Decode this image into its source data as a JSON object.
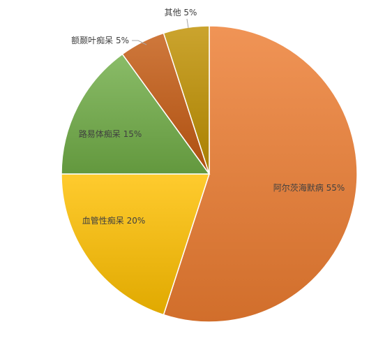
{
  "chart_data": {
    "type": "pie",
    "categories": [
      "阿尔茨海默病",
      "血管性痴呆",
      "路易体痴呆",
      "额颞叶痴呆",
      "其他"
    ],
    "values": [
      55,
      20,
      15,
      5,
      5
    ],
    "data_labels": [
      "阿尔茨海默病 55%",
      "血管性痴呆 20%",
      "路易体痴呆 15%",
      "额颞叶痴呆 5%",
      "其他 5%"
    ],
    "colors": [
      "#ED7D31",
      "#FFC000",
      "#70AD47",
      "#C55A11",
      "#BF9000"
    ],
    "start": "12 o'clock",
    "direction": "clockwise",
    "legend": "none",
    "label_placement": "inside slices; small slices labeled outside with leader lines"
  }
}
